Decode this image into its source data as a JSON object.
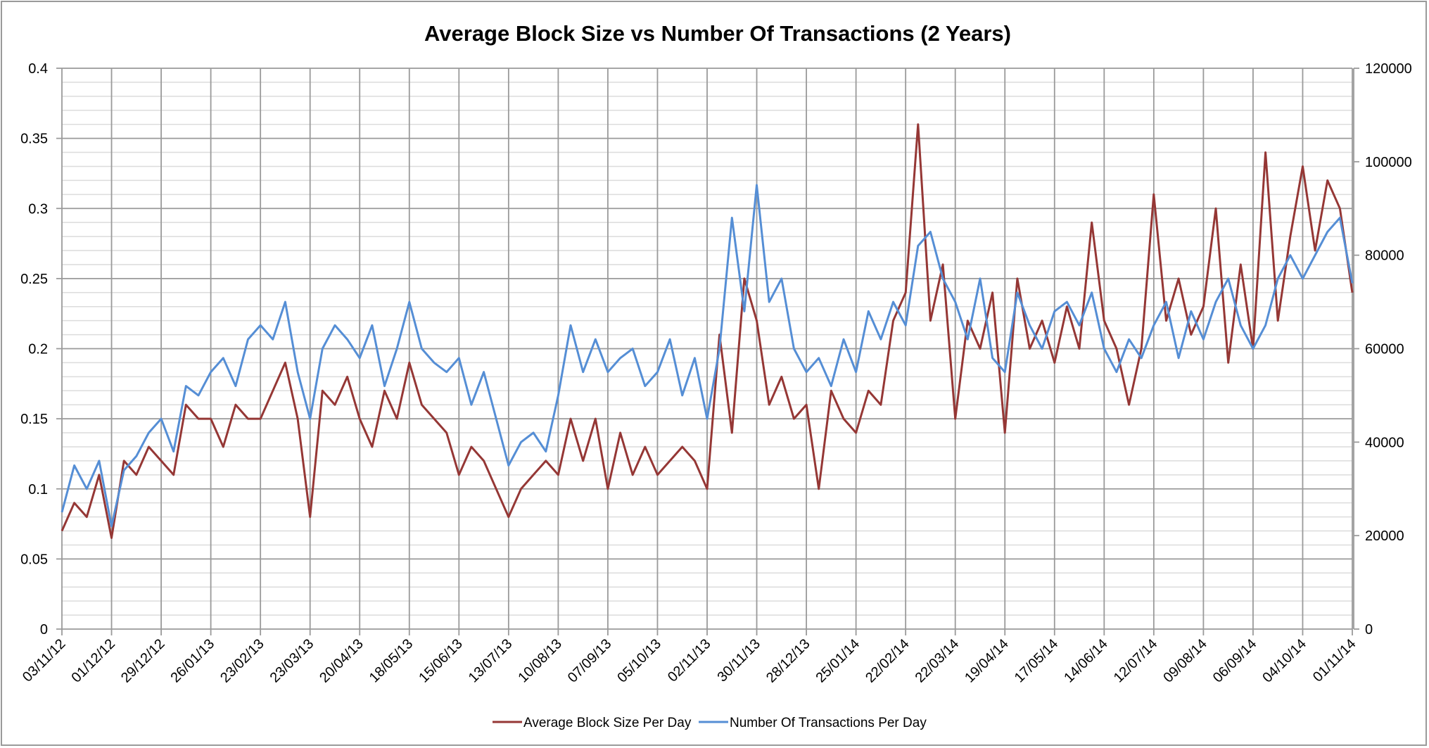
{
  "chart_data": {
    "type": "line",
    "title": "Average Block Size vs Number Of Transactions (2 Years)",
    "grid": true,
    "legend_position": "bottom",
    "x_tick_labels": [
      "03/11/12",
      "01/12/12",
      "29/12/12",
      "26/01/13",
      "23/02/13",
      "23/03/13",
      "20/04/13",
      "18/05/13",
      "15/06/13",
      "13/07/13",
      "10/08/13",
      "07/09/13",
      "05/10/13",
      "02/11/13",
      "30/11/13",
      "28/12/13",
      "25/01/14",
      "22/02/14",
      "22/03/14",
      "19/04/14",
      "17/05/14",
      "14/06/14",
      "12/07/14",
      "09/08/14",
      "06/09/14",
      "04/10/14",
      "01/11/14"
    ],
    "y_left": {
      "ylim": [
        0,
        0.4
      ],
      "ticks": [
        "0",
        "0.05",
        "0.1",
        "0.15",
        "0.2",
        "0.25",
        "0.3",
        "0.35",
        "0.4"
      ]
    },
    "y_right": {
      "ylim": [
        0,
        120000
      ],
      "ticks": [
        "0",
        "20000",
        "40000",
        "60000",
        "80000",
        "100000",
        "120000"
      ]
    },
    "x": [
      "03/11/12",
      "10/11/12",
      "17/11/12",
      "24/11/12",
      "01/12/12",
      "08/12/12",
      "15/12/12",
      "22/12/12",
      "29/12/12",
      "05/01/13",
      "12/01/13",
      "19/01/13",
      "26/01/13",
      "02/02/13",
      "09/02/13",
      "16/02/13",
      "23/02/13",
      "02/03/13",
      "09/03/13",
      "16/03/13",
      "23/03/13",
      "30/03/13",
      "06/04/13",
      "13/04/13",
      "20/04/13",
      "27/04/13",
      "04/05/13",
      "11/05/13",
      "18/05/13",
      "25/05/13",
      "01/06/13",
      "08/06/13",
      "15/06/13",
      "22/06/13",
      "29/06/13",
      "06/07/13",
      "13/07/13",
      "20/07/13",
      "27/07/13",
      "03/08/13",
      "10/08/13",
      "17/08/13",
      "24/08/13",
      "31/08/13",
      "07/09/13",
      "14/09/13",
      "21/09/13",
      "28/09/13",
      "05/10/13",
      "12/10/13",
      "19/10/13",
      "26/10/13",
      "02/11/13",
      "09/11/13",
      "16/11/13",
      "23/11/13",
      "30/11/13",
      "07/12/13",
      "14/12/13",
      "21/12/13",
      "28/12/13",
      "04/01/14",
      "11/01/14",
      "18/01/14",
      "25/01/14",
      "01/02/14",
      "08/02/14",
      "15/02/14",
      "22/02/14",
      "01/03/14",
      "08/03/14",
      "15/03/14",
      "22/03/14",
      "29/03/14",
      "05/04/14",
      "12/04/14",
      "19/04/14",
      "26/04/14",
      "03/05/14",
      "10/05/14",
      "17/05/14",
      "24/05/14",
      "31/05/14",
      "07/06/14",
      "14/06/14",
      "21/06/14",
      "28/06/14",
      "05/07/14",
      "12/07/14",
      "19/07/14",
      "26/07/14",
      "02/08/14",
      "09/08/14",
      "16/08/14",
      "23/08/14",
      "30/08/14",
      "06/09/14",
      "13/09/14",
      "20/09/14",
      "27/09/14",
      "04/10/14",
      "11/10/14",
      "18/10/14",
      "25/10/14",
      "01/11/14"
    ],
    "series": [
      {
        "name": "Average Block Size Per Day",
        "axis": "left",
        "color": "#953735",
        "values": [
          0.07,
          0.09,
          0.08,
          0.11,
          0.065,
          0.12,
          0.11,
          0.13,
          0.12,
          0.11,
          0.16,
          0.15,
          0.15,
          0.13,
          0.16,
          0.15,
          0.15,
          0.17,
          0.19,
          0.15,
          0.08,
          0.17,
          0.16,
          0.18,
          0.15,
          0.13,
          0.17,
          0.15,
          0.19,
          0.16,
          0.15,
          0.14,
          0.11,
          0.13,
          0.12,
          0.1,
          0.08,
          0.1,
          0.11,
          0.12,
          0.11,
          0.15,
          0.12,
          0.15,
          0.1,
          0.14,
          0.11,
          0.13,
          0.11,
          0.12,
          0.13,
          0.12,
          0.1,
          0.21,
          0.14,
          0.25,
          0.22,
          0.16,
          0.18,
          0.15,
          0.16,
          0.1,
          0.17,
          0.15,
          0.14,
          0.17,
          0.16,
          0.22,
          0.24,
          0.36,
          0.22,
          0.26,
          0.15,
          0.22,
          0.2,
          0.24,
          0.14,
          0.25,
          0.2,
          0.22,
          0.19,
          0.23,
          0.2,
          0.29,
          0.22,
          0.2,
          0.16,
          0.2,
          0.31,
          0.22,
          0.25,
          0.21,
          0.23,
          0.3,
          0.19,
          0.26,
          0.2,
          0.34,
          0.22,
          0.28,
          0.33,
          0.27,
          0.32,
          0.3,
          0.24
        ]
      },
      {
        "name": "Number Of Transactions Per Day",
        "axis": "right",
        "color": "#558ED5",
        "values": [
          25000,
          35000,
          30000,
          36000,
          22000,
          34000,
          37000,
          42000,
          45000,
          38000,
          52000,
          50000,
          55000,
          58000,
          52000,
          62000,
          65000,
          62000,
          70000,
          55000,
          45000,
          60000,
          65000,
          62000,
          58000,
          65000,
          52000,
          60000,
          70000,
          60000,
          57000,
          55000,
          58000,
          48000,
          55000,
          45000,
          35000,
          40000,
          42000,
          38000,
          50000,
          65000,
          55000,
          62000,
          55000,
          58000,
          60000,
          52000,
          55000,
          62000,
          50000,
          58000,
          45000,
          60000,
          88000,
          68000,
          95000,
          70000,
          75000,
          60000,
          55000,
          58000,
          52000,
          62000,
          55000,
          68000,
          62000,
          70000,
          65000,
          82000,
          85000,
          75000,
          70000,
          62000,
          75000,
          58000,
          55000,
          72000,
          65000,
          60000,
          68000,
          70000,
          65000,
          72000,
          60000,
          55000,
          62000,
          58000,
          65000,
          70000,
          58000,
          68000,
          62000,
          70000,
          75000,
          65000,
          60000,
          65000,
          75000,
          80000,
          75000,
          80000,
          85000,
          88000,
          74000
        ]
      }
    ]
  }
}
